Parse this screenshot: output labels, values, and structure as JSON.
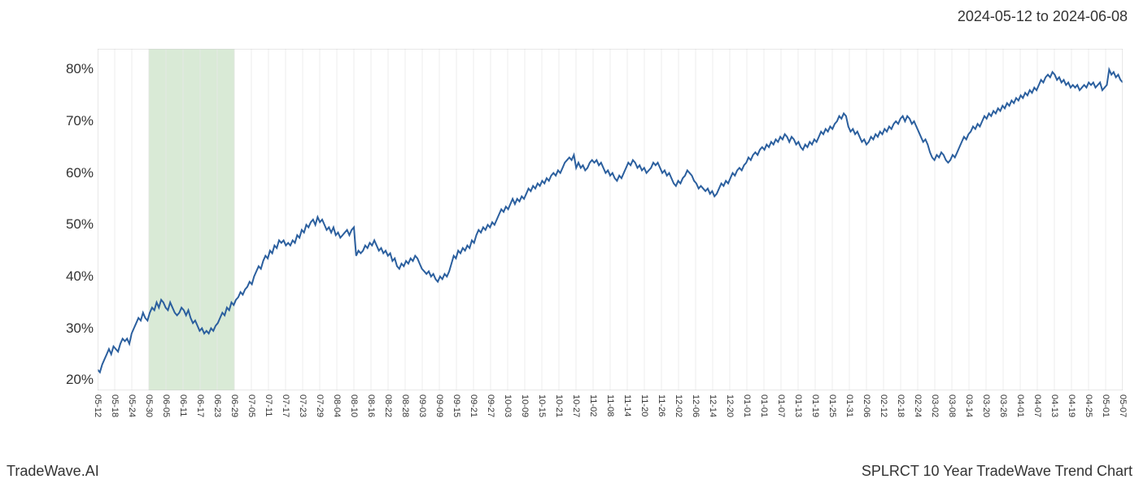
{
  "date_range": "2024-05-12 to 2024-06-08",
  "footer_left": "TradeWave.AI",
  "footer_right": "SPLRCT 10 Year TradeWave Trend Chart",
  "chart": {
    "type": "line",
    "background_color": "#ffffff",
    "border_color": "#d0d0d0",
    "grid_color": "#e8e8e8",
    "line_color": "#2b5f9e",
    "line_width": 2,
    "highlight_fill": "#d9ead6",
    "highlight_border": "#b8d4b3",
    "highlight_start_idx": 3,
    "highlight_end_idx": 8,
    "ylim": [
      18,
      84
    ],
    "yticks": [
      20,
      30,
      40,
      50,
      60,
      70,
      80
    ],
    "ytick_labels": [
      "20%",
      "30%",
      "40%",
      "50%",
      "60%",
      "70%",
      "80%"
    ],
    "xtick_labels": [
      "05-12",
      "05-18",
      "05-24",
      "05-30",
      "06-05",
      "06-11",
      "06-17",
      "06-23",
      "06-29",
      "07-05",
      "07-11",
      "07-17",
      "07-23",
      "07-29",
      "08-04",
      "08-10",
      "08-16",
      "08-22",
      "08-28",
      "09-03",
      "09-09",
      "09-15",
      "09-21",
      "09-27",
      "10-03",
      "10-09",
      "10-15",
      "10-21",
      "10-27",
      "11-02",
      "11-08",
      "11-14",
      "11-20",
      "11-26",
      "12-02",
      "12-06",
      "12-14",
      "12-20",
      "01-01",
      "01-01",
      "01-07",
      "01-13",
      "01-19",
      "01-25",
      "01-31",
      "02-06",
      "02-12",
      "02-18",
      "02-24",
      "03-02",
      "03-08",
      "03-14",
      "03-20",
      "03-26",
      "04-01",
      "04-07",
      "04-13",
      "04-19",
      "04-25",
      "05-01",
      "05-07"
    ],
    "series": [
      22,
      21.5,
      23,
      24,
      25,
      26,
      25,
      26.5,
      26,
      25.5,
      27,
      28,
      27.5,
      28,
      27,
      29,
      30,
      31,
      32,
      31.5,
      33,
      32,
      31.5,
      33,
      34,
      33.5,
      35,
      34,
      35.5,
      35,
      34,
      33.5,
      35,
      34,
      33,
      32.5,
      33,
      34,
      33.5,
      32.5,
      33.5,
      32,
      31,
      31.5,
      30.5,
      29.5,
      30,
      29,
      29.5,
      29,
      30,
      29.5,
      30.5,
      31,
      32,
      33,
      32.5,
      34,
      33.5,
      35,
      34.5,
      35.5,
      36,
      37,
      36.5,
      37.5,
      38,
      39,
      38.5,
      40,
      41,
      42,
      41.5,
      43,
      44,
      43.5,
      45,
      44.5,
      46,
      45.5,
      47,
      46.5,
      47,
      46,
      46.5,
      46,
      47,
      46.5,
      48,
      47.5,
      49,
      48.5,
      50,
      49.5,
      50.5,
      51,
      50,
      51.5,
      50.5,
      51,
      50,
      49,
      49.5,
      48.5,
      49.5,
      48,
      48.5,
      47.5,
      48,
      48.5,
      49,
      48,
      49,
      49.5,
      44,
      45,
      44.5,
      45,
      46,
      45.5,
      46.5,
      46,
      47,
      46,
      45,
      45.5,
      44.5,
      45,
      44,
      44.5,
      43,
      43.5,
      42,
      41.5,
      42.5,
      42,
      43,
      42.5,
      43.5,
      43,
      44,
      43.5,
      42.5,
      41.5,
      41,
      40.5,
      41,
      40,
      40.5,
      39.5,
      39,
      40,
      39.5,
      40.5,
      40,
      41,
      42.5,
      44,
      43.5,
      45,
      44.5,
      45.5,
      45,
      46,
      45.5,
      47,
      46.5,
      48,
      49,
      48.5,
      49.5,
      49,
      50,
      49.5,
      50.5,
      50,
      51,
      52,
      53,
      52.5,
      53.5,
      53,
      54,
      55,
      54,
      55,
      54.5,
      55.5,
      55,
      56,
      57,
      56.5,
      57.5,
      57,
      58,
      57.5,
      58.5,
      58,
      59,
      58.5,
      59.5,
      60,
      59.5,
      60.5,
      60,
      61,
      62,
      62.5,
      63,
      62.5,
      63.5,
      61,
      62,
      61,
      61.5,
      60.5,
      61,
      62,
      62.5,
      62,
      62.5,
      61.5,
      62,
      61,
      60,
      60.5,
      59.5,
      60,
      59,
      58.5,
      59.5,
      59,
      60,
      61,
      62,
      61.5,
      62.5,
      62,
      61,
      61.5,
      60.5,
      61,
      60,
      60.5,
      61,
      62,
      61.5,
      62,
      61,
      60,
      60.5,
      59.5,
      60,
      59,
      58,
      57.5,
      58.5,
      58,
      59,
      59.5,
      60.5,
      60,
      59.5,
      58.5,
      58,
      57,
      57.5,
      57,
      56.5,
      57,
      56,
      56.5,
      55.5,
      56,
      57,
      58,
      57.5,
      58.5,
      58,
      59,
      60,
      59.5,
      60.5,
      61,
      60.5,
      61.5,
      62,
      63,
      62.5,
      63.5,
      64,
      63.5,
      64.5,
      65,
      64.5,
      65.5,
      65,
      66,
      65.5,
      66.5,
      66,
      67,
      66.5,
      67.5,
      67,
      66,
      67,
      66.5,
      65.5,
      66,
      65,
      64.5,
      65.5,
      65,
      66,
      65.5,
      66.5,
      66,
      67,
      68,
      67.5,
      68.5,
      68,
      69,
      68.5,
      69.5,
      70,
      71,
      70.5,
      71.5,
      71,
      69,
      68,
      68.5,
      67.5,
      68,
      67,
      66,
      66.5,
      65.5,
      66,
      67,
      66.5,
      67.5,
      67,
      68,
      67.5,
      68.5,
      68,
      69,
      68.5,
      69.5,
      70,
      69.5,
      70.5,
      71,
      70,
      71,
      70.5,
      69.5,
      70,
      69,
      68,
      67,
      66,
      66.5,
      65.5,
      64,
      63,
      62.5,
      63.5,
      63,
      64,
      63.5,
      62.5,
      62,
      62.5,
      63.5,
      63,
      64,
      65,
      66,
      67,
      66.5,
      67.5,
      68,
      69,
      68.5,
      69.5,
      69,
      70,
      71,
      70.5,
      71.5,
      71,
      72,
      71.5,
      72.5,
      72,
      73,
      72.5,
      73.5,
      73,
      74,
      73.5,
      74.5,
      74,
      75,
      74.5,
      75.5,
      75,
      76,
      75.5,
      76.5,
      76,
      77,
      78,
      77.5,
      78.5,
      79,
      78.5,
      79.5,
      79,
      78,
      78.5,
      77.5,
      78,
      77,
      77.5,
      76.5,
      77,
      76.5,
      77,
      76,
      76.5,
      77,
      76.5,
      77.5,
      77,
      77.5,
      76.5,
      77,
      77.5,
      76,
      76.5,
      77,
      80,
      79,
      79.5,
      78.5,
      79,
      78,
      77.5
    ]
  }
}
